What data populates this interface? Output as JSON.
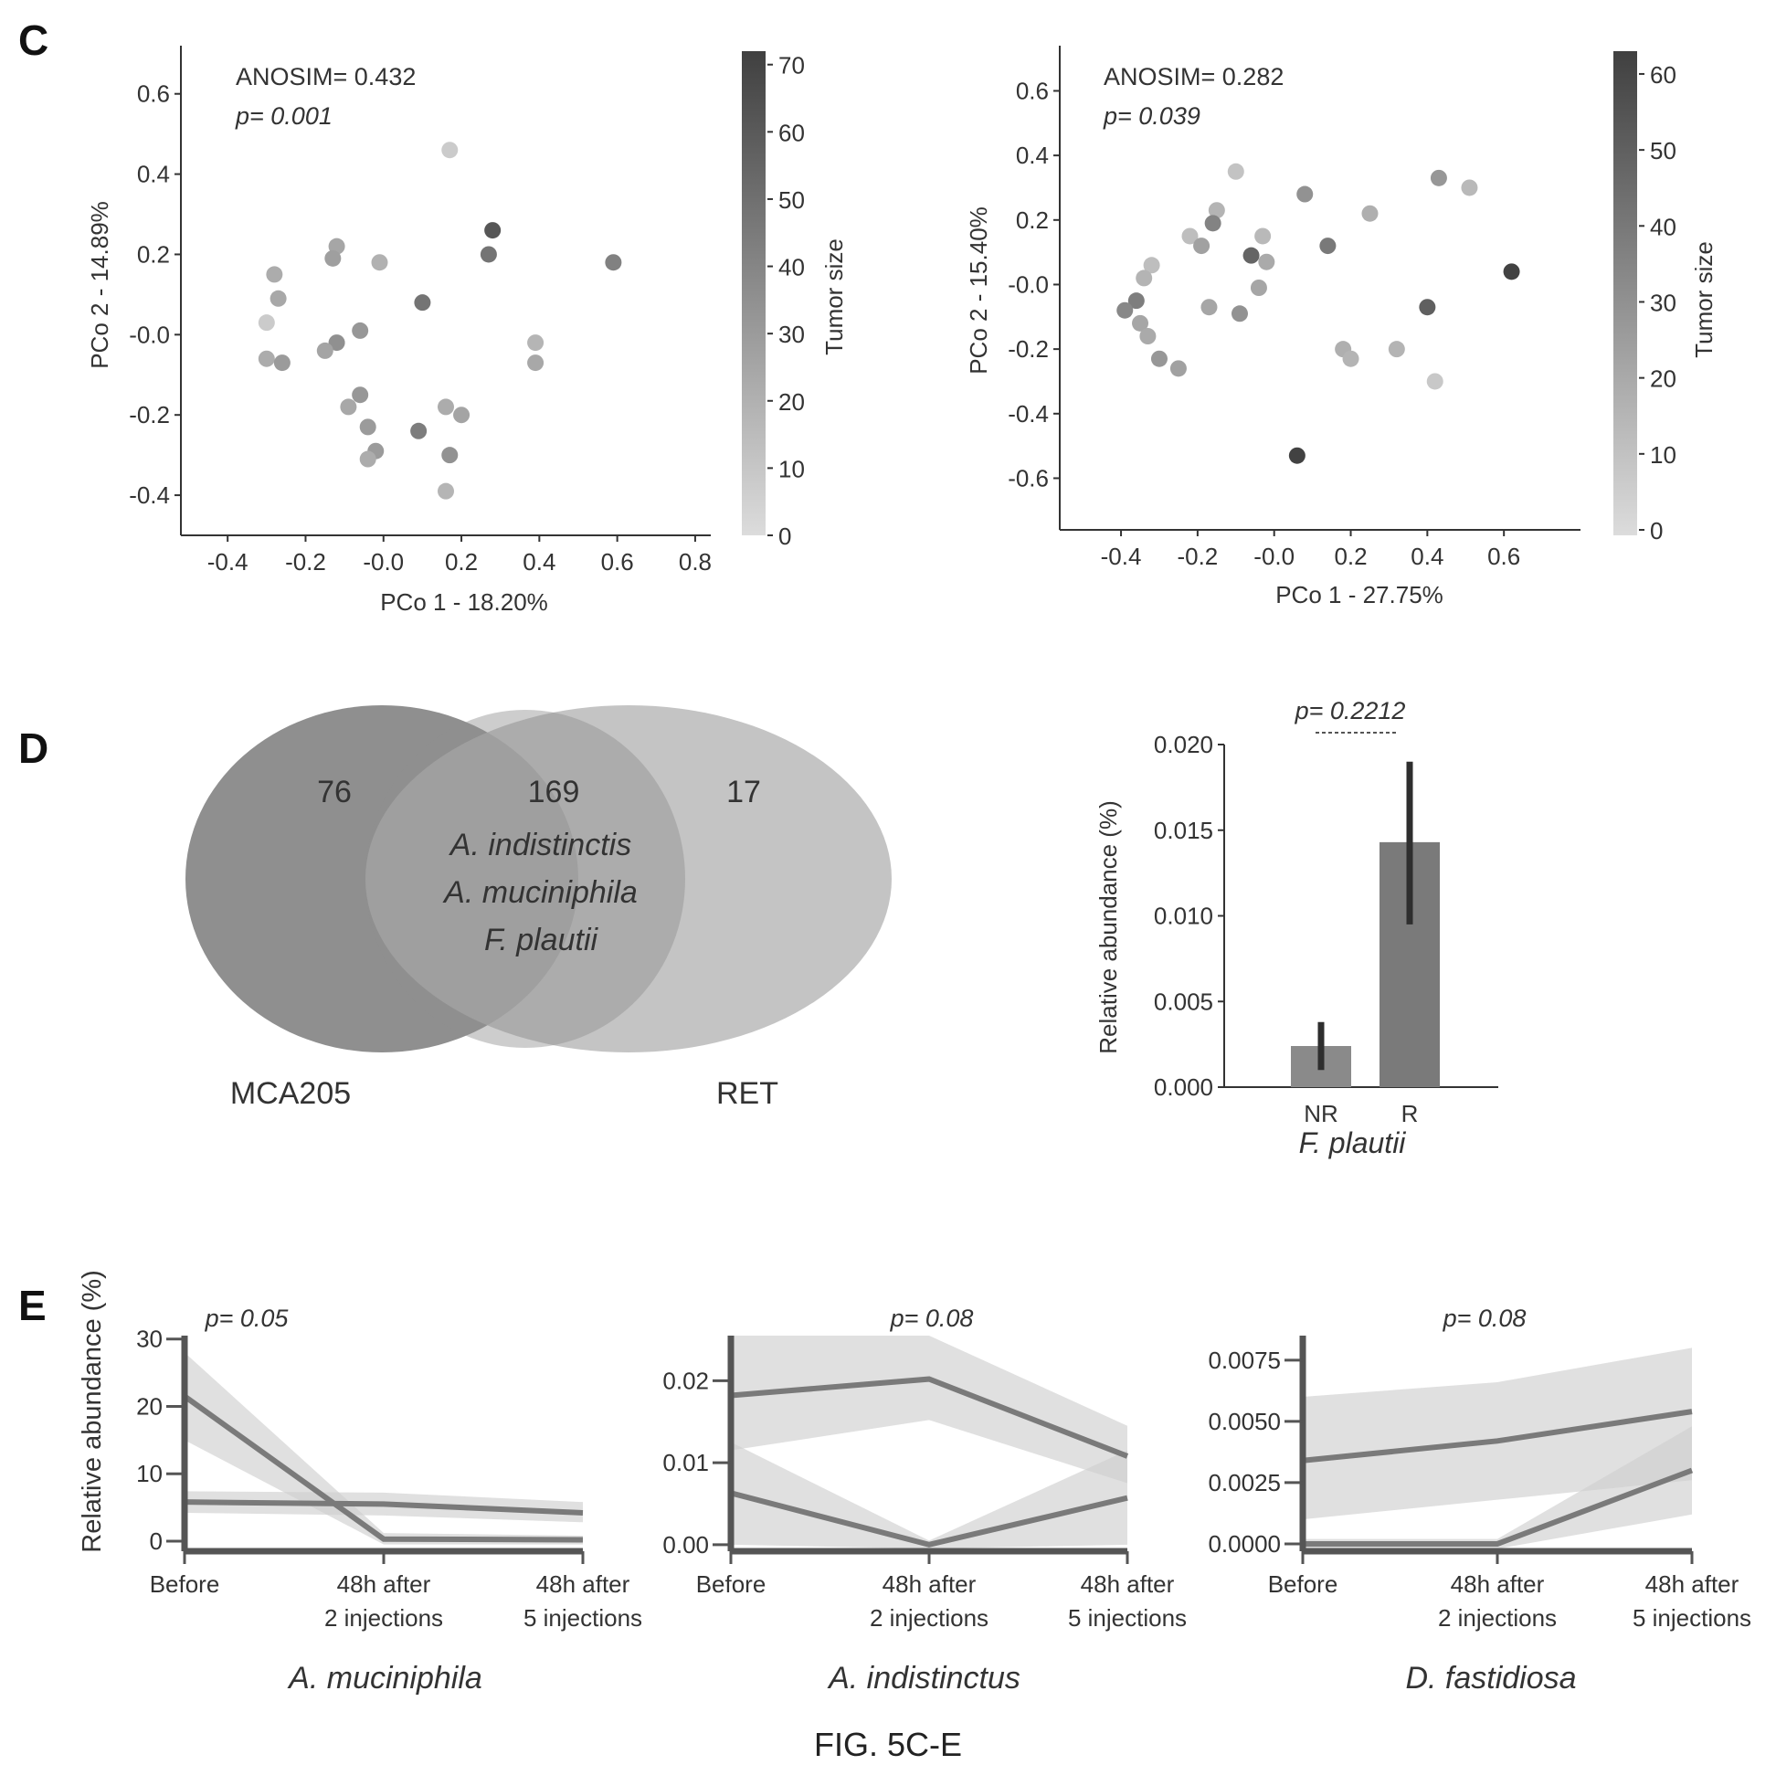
{
  "figure": {
    "panel_c": "C",
    "panel_d": "D",
    "panel_e": "E",
    "caption": "FIG. 5C-E"
  },
  "colors": {
    "light": "#dcdcdc",
    "dark": "#404040",
    "venn_left": "#8f8f8f",
    "venn_right": "#b4b4b4",
    "line": "#7a7a7a",
    "band": "#d0d0d0"
  },
  "chart_data": [
    {
      "id": "pcoa-left",
      "type": "scatter",
      "xlabel": "PCo 1 - 18.20%",
      "ylabel": "PCo 2 - 14.89%",
      "xlim": [
        -0.52,
        0.84
      ],
      "ylim": [
        -0.5,
        0.72
      ],
      "xticks": [
        -0.4,
        -0.2,
        0.0,
        0.2,
        0.4,
        0.6,
        0.8
      ],
      "xtick_labels": [
        "-0.4",
        "-0.2",
        "-0.0",
        "0.2",
        "0.4",
        "0.6",
        "0.8"
      ],
      "yticks": [
        -0.4,
        -0.2,
        0.0,
        0.2,
        0.4,
        0.6
      ],
      "ytick_labels": [
        "-0.4",
        "-0.2",
        "-0.0",
        "0.2",
        "0.4",
        "0.6"
      ],
      "annotations": [
        "ANOSIM= 0.432",
        "p= 0.001"
      ],
      "colorbar": {
        "label": "Tumor size",
        "min": 0,
        "max": 72,
        "ticks": [
          0,
          10,
          20,
          30,
          40,
          50,
          60,
          70
        ]
      },
      "points": [
        {
          "x": 0.17,
          "y": 0.46,
          "v": 8
        },
        {
          "x": 0.28,
          "y": 0.26,
          "v": 62
        },
        {
          "x": 0.27,
          "y": 0.2,
          "v": 48
        },
        {
          "x": 0.59,
          "y": 0.18,
          "v": 42
        },
        {
          "x": -0.12,
          "y": 0.22,
          "v": 25
        },
        {
          "x": -0.13,
          "y": 0.19,
          "v": 28
        },
        {
          "x": -0.01,
          "y": 0.18,
          "v": 20
        },
        {
          "x": -0.28,
          "y": 0.15,
          "v": 22
        },
        {
          "x": -0.27,
          "y": 0.09,
          "v": 24
        },
        {
          "x": 0.1,
          "y": 0.08,
          "v": 48
        },
        {
          "x": -0.3,
          "y": 0.03,
          "v": 8
        },
        {
          "x": -0.06,
          "y": 0.01,
          "v": 32
        },
        {
          "x": -0.12,
          "y": -0.02,
          "v": 35
        },
        {
          "x": -0.15,
          "y": -0.04,
          "v": 26
        },
        {
          "x": 0.39,
          "y": -0.02,
          "v": 18
        },
        {
          "x": 0.39,
          "y": -0.07,
          "v": 24
        },
        {
          "x": -0.3,
          "y": -0.06,
          "v": 22
        },
        {
          "x": -0.26,
          "y": -0.07,
          "v": 30
        },
        {
          "x": -0.06,
          "y": -0.15,
          "v": 32
        },
        {
          "x": -0.09,
          "y": -0.18,
          "v": 24
        },
        {
          "x": 0.16,
          "y": -0.18,
          "v": 22
        },
        {
          "x": 0.2,
          "y": -0.2,
          "v": 26
        },
        {
          "x": -0.04,
          "y": -0.23,
          "v": 30
        },
        {
          "x": 0.09,
          "y": -0.24,
          "v": 44
        },
        {
          "x": 0.17,
          "y": -0.3,
          "v": 34
        },
        {
          "x": -0.02,
          "y": -0.29,
          "v": 30
        },
        {
          "x": -0.04,
          "y": -0.31,
          "v": 22
        },
        {
          "x": 0.16,
          "y": -0.39,
          "v": 18
        }
      ]
    },
    {
      "id": "pcoa-right",
      "type": "scatter",
      "xlabel": "PCo 1 - 27.75%",
      "ylabel": "PCo 2 - 15.40%",
      "xlim": [
        -0.56,
        0.8
      ],
      "ylim": [
        -0.76,
        0.74
      ],
      "xticks": [
        -0.4,
        -0.2,
        0.0,
        0.2,
        0.4,
        0.6
      ],
      "xtick_labels": [
        "-0.4",
        "-0.2",
        "-0.0",
        "0.2",
        "0.4",
        "0.6"
      ],
      "yticks": [
        -0.6,
        -0.4,
        -0.2,
        0.0,
        0.2,
        0.4,
        0.6
      ],
      "ytick_labels": [
        "-0.6",
        "-0.4",
        "-0.2",
        "-0.0",
        "0.2",
        "0.4",
        "0.6"
      ],
      "annotations": [
        "ANOSIM= 0.282",
        "p= 0.039"
      ],
      "colorbar": {
        "label": "Tumor size",
        "min": 0,
        "max": 63,
        "ticks": [
          0,
          10,
          20,
          30,
          40,
          50,
          60
        ]
      },
      "points": [
        {
          "x": -0.1,
          "y": 0.35,
          "v": 10
        },
        {
          "x": 0.08,
          "y": 0.28,
          "v": 30
        },
        {
          "x": 0.43,
          "y": 0.33,
          "v": 28
        },
        {
          "x": 0.51,
          "y": 0.3,
          "v": 14
        },
        {
          "x": -0.15,
          "y": 0.23,
          "v": 16
        },
        {
          "x": 0.25,
          "y": 0.22,
          "v": 18
        },
        {
          "x": -0.16,
          "y": 0.19,
          "v": 36
        },
        {
          "x": -0.22,
          "y": 0.15,
          "v": 12
        },
        {
          "x": -0.03,
          "y": 0.15,
          "v": 14
        },
        {
          "x": -0.19,
          "y": 0.12,
          "v": 24
        },
        {
          "x": 0.14,
          "y": 0.12,
          "v": 40
        },
        {
          "x": -0.06,
          "y": 0.09,
          "v": 48
        },
        {
          "x": -0.02,
          "y": 0.07,
          "v": 20
        },
        {
          "x": -0.32,
          "y": 0.06,
          "v": 12
        },
        {
          "x": -0.34,
          "y": 0.02,
          "v": 16
        },
        {
          "x": 0.62,
          "y": 0.04,
          "v": 62
        },
        {
          "x": -0.04,
          "y": -0.01,
          "v": 22
        },
        {
          "x": -0.36,
          "y": -0.05,
          "v": 38
        },
        {
          "x": -0.39,
          "y": -0.08,
          "v": 34
        },
        {
          "x": -0.17,
          "y": -0.07,
          "v": 22
        },
        {
          "x": -0.09,
          "y": -0.09,
          "v": 30
        },
        {
          "x": 0.4,
          "y": -0.07,
          "v": 50
        },
        {
          "x": -0.35,
          "y": -0.12,
          "v": 22
        },
        {
          "x": -0.33,
          "y": -0.16,
          "v": 20
        },
        {
          "x": 0.18,
          "y": -0.2,
          "v": 18
        },
        {
          "x": 0.32,
          "y": -0.2,
          "v": 16
        },
        {
          "x": 0.2,
          "y": -0.23,
          "v": 16
        },
        {
          "x": -0.3,
          "y": -0.23,
          "v": 28
        },
        {
          "x": -0.25,
          "y": -0.26,
          "v": 24
        },
        {
          "x": 0.42,
          "y": -0.3,
          "v": 8
        },
        {
          "x": 0.06,
          "y": -0.53,
          "v": 62
        }
      ]
    },
    {
      "id": "venn",
      "type": "venn",
      "sets": [
        {
          "name": "MCA205",
          "only": "76"
        },
        {
          "name": "RET",
          "only": "17"
        }
      ],
      "intersection": "169",
      "intersection_labels": [
        "A. indistinctis",
        "A. muciniphila",
        "F. plautii"
      ]
    },
    {
      "id": "bar-fplautii",
      "type": "bar",
      "categories": [
        "NR",
        "R"
      ],
      "values": [
        0.0024,
        0.0143
      ],
      "error_low": [
        0.001,
        0.0095
      ],
      "error_high": [
        0.0038,
        0.019
      ],
      "ylim": [
        0,
        0.02
      ],
      "yticks": [
        0.0,
        0.005,
        0.01,
        0.015,
        0.02
      ],
      "ytick_labels": [
        "0.000",
        "0.005",
        "0.010",
        "0.015",
        "0.020"
      ],
      "ylabel": "Relative abundance (%)",
      "xlabel": "F. plautii",
      "annotation": "p= 0.2212"
    },
    {
      "id": "line-amuc",
      "type": "line",
      "categories": [
        "Before",
        "48h after\n2 injections",
        "48h after\n5 injections"
      ],
      "ylim": [
        -1.5,
        30.5
      ],
      "yticks": [
        0,
        10,
        20,
        30
      ],
      "ytick_labels": [
        "0",
        "10",
        "20",
        "30"
      ],
      "ylabel": "Relative abundance (%)",
      "xlabel": "A. muciniphila",
      "annotation": "p= 0.05",
      "series": [
        {
          "values": [
            21.5,
            0.3,
            0.2
          ],
          "lower": [
            15,
            -0.5,
            -0.5
          ],
          "upper": [
            28,
            1.2,
            0.8
          ]
        },
        {
          "values": [
            5.8,
            5.5,
            4.2
          ],
          "lower": [
            4.2,
            3.8,
            2.8
          ],
          "upper": [
            7.4,
            7.2,
            5.8
          ]
        }
      ]
    },
    {
      "id": "line-aind",
      "type": "line",
      "categories": [
        "Before",
        "48h after\n2 injections",
        "48h after\n5 injections"
      ],
      "ylim": [
        -0.0008,
        0.0255
      ],
      "yticks": [
        0.0,
        0.01,
        0.02
      ],
      "ytick_labels": [
        "0.00",
        "0.01",
        "0.02"
      ],
      "xlabel": "A. indistinctus",
      "annotation": "p= 0.08",
      "series": [
        {
          "values": [
            0.0182,
            0.0202,
            0.0108
          ],
          "lower": [
            0.0115,
            0.0152,
            0.0075
          ],
          "upper": [
            0.0255,
            0.0255,
            0.0145
          ]
        },
        {
          "values": [
            0.0063,
            0.0,
            0.0057
          ],
          "lower": [
            0.0,
            -0.0005,
            0.0
          ],
          "upper": [
            0.0125,
            0.0005,
            0.0115
          ]
        }
      ]
    },
    {
      "id": "line-dfas",
      "type": "line",
      "categories": [
        "Before",
        "48h after\n2 injections",
        "48h after\n5 injections"
      ],
      "ylim": [
        -0.0003,
        0.0085
      ],
      "yticks": [
        0.0,
        0.0025,
        0.005,
        0.0075
      ],
      "ytick_labels": [
        "0.0000",
        "0.0025",
        "0.0050",
        "0.0075"
      ],
      "xlabel": "D. fastidiosa",
      "annotation": "p= 0.08",
      "series": [
        {
          "values": [
            0.0034,
            0.0042,
            0.0054
          ],
          "lower": [
            0.001,
            0.0018,
            0.0026
          ],
          "upper": [
            0.006,
            0.0066,
            0.008
          ]
        },
        {
          "values": [
            0.0,
            0.0,
            0.003
          ],
          "lower": [
            -0.0002,
            -0.0002,
            0.0012
          ],
          "upper": [
            0.0002,
            0.0002,
            0.0048
          ]
        }
      ]
    }
  ]
}
